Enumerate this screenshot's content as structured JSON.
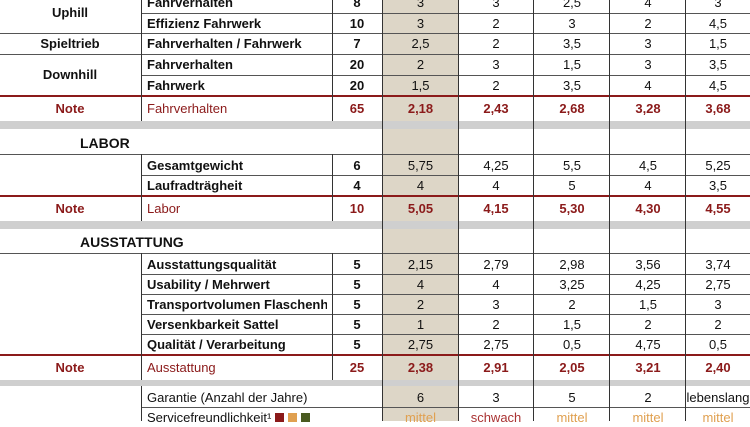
{
  "colors": {
    "note_red": "#8b1a1a",
    "highlight": "#ddd6c7",
    "mittel": "#e0a050",
    "schwach": "#a33"
  },
  "rows": [
    {
      "group": "",
      "criterion": "Fahrverhalten",
      "weight": "8",
      "values": [
        "3",
        "3",
        "2,5",
        "4",
        "3"
      ]
    },
    {
      "group": "Uphill",
      "criterion": "Effizienz Fahrwerk",
      "weight": "10",
      "values": [
        "3",
        "2",
        "3",
        "2",
        "4,5"
      ]
    },
    {
      "group": "Spieltrieb",
      "criterion": "Fahrverhalten / Fahrwerk",
      "weight": "7",
      "values": [
        "2,5",
        "2",
        "3,5",
        "3",
        "1,5"
      ]
    },
    {
      "group": "Downhill",
      "criterion": "Fahrverhalten",
      "weight": "20",
      "values": [
        "2",
        "3",
        "1,5",
        "3",
        "3,5"
      ]
    },
    {
      "group": "",
      "criterion": "Fahrwerk",
      "weight": "20",
      "values": [
        "1,5",
        "2",
        "3,5",
        "4",
        "4,5"
      ]
    },
    {
      "group": "Note",
      "criterion": "Fahrverhalten",
      "weight": "65",
      "values": [
        "2,18",
        "2,43",
        "2,68",
        "3,28",
        "3,68"
      ]
    }
  ],
  "labor": {
    "title": "LABOR",
    "rows": [
      {
        "criterion": "Gesamtgewicht",
        "weight": "6",
        "values": [
          "5,75",
          "4,25",
          "5,5",
          "4,5",
          "5,25"
        ]
      },
      {
        "criterion": "Laufradträgheit",
        "weight": "4",
        "values": [
          "4",
          "4",
          "5",
          "4",
          "3,5"
        ]
      }
    ],
    "note": {
      "group": "Note",
      "criterion": "Labor",
      "weight": "10",
      "values": [
        "5,05",
        "4,15",
        "5,30",
        "4,30",
        "4,55"
      ]
    }
  },
  "ausstattung": {
    "title": "AUSSTATTUNG",
    "rows": [
      {
        "criterion": "Ausstattungsqualität",
        "weight": "5",
        "values": [
          "2,15",
          "2,79",
          "2,98",
          "3,56",
          "3,74"
        ]
      },
      {
        "criterion": "Usability / Mehrwert",
        "weight": "5",
        "values": [
          "4",
          "4",
          "3,25",
          "4,25",
          "2,75"
        ]
      },
      {
        "criterion": "Transportvolumen Flaschenhalter",
        "weight": "5",
        "values": [
          "2",
          "3",
          "2",
          "1,5",
          "3"
        ]
      },
      {
        "criterion": "Versenkbarkeit Sattel",
        "weight": "5",
        "values": [
          "1",
          "2",
          "1,5",
          "2",
          "2"
        ]
      },
      {
        "criterion": "Qualität / Verarbeitung",
        "weight": "5",
        "values": [
          "2,75",
          "2,75",
          "0,5",
          "4,75",
          "0,5"
        ]
      }
    ],
    "note": {
      "group": "Note",
      "criterion": "Ausstattung",
      "weight": "25",
      "values": [
        "2,38",
        "2,91",
        "2,05",
        "3,21",
        "2,40"
      ]
    }
  },
  "extra": {
    "garantie": {
      "criterion": "Garantie (Anzahl der Jahre)",
      "values": [
        "6",
        "3",
        "5",
        "2",
        "lebenslang"
      ]
    },
    "service": {
      "criterion": "Servicefreundlichkeit¹",
      "values": [
        "mittel",
        "schwach",
        "mittel",
        "mittel",
        "mittel"
      ]
    }
  }
}
